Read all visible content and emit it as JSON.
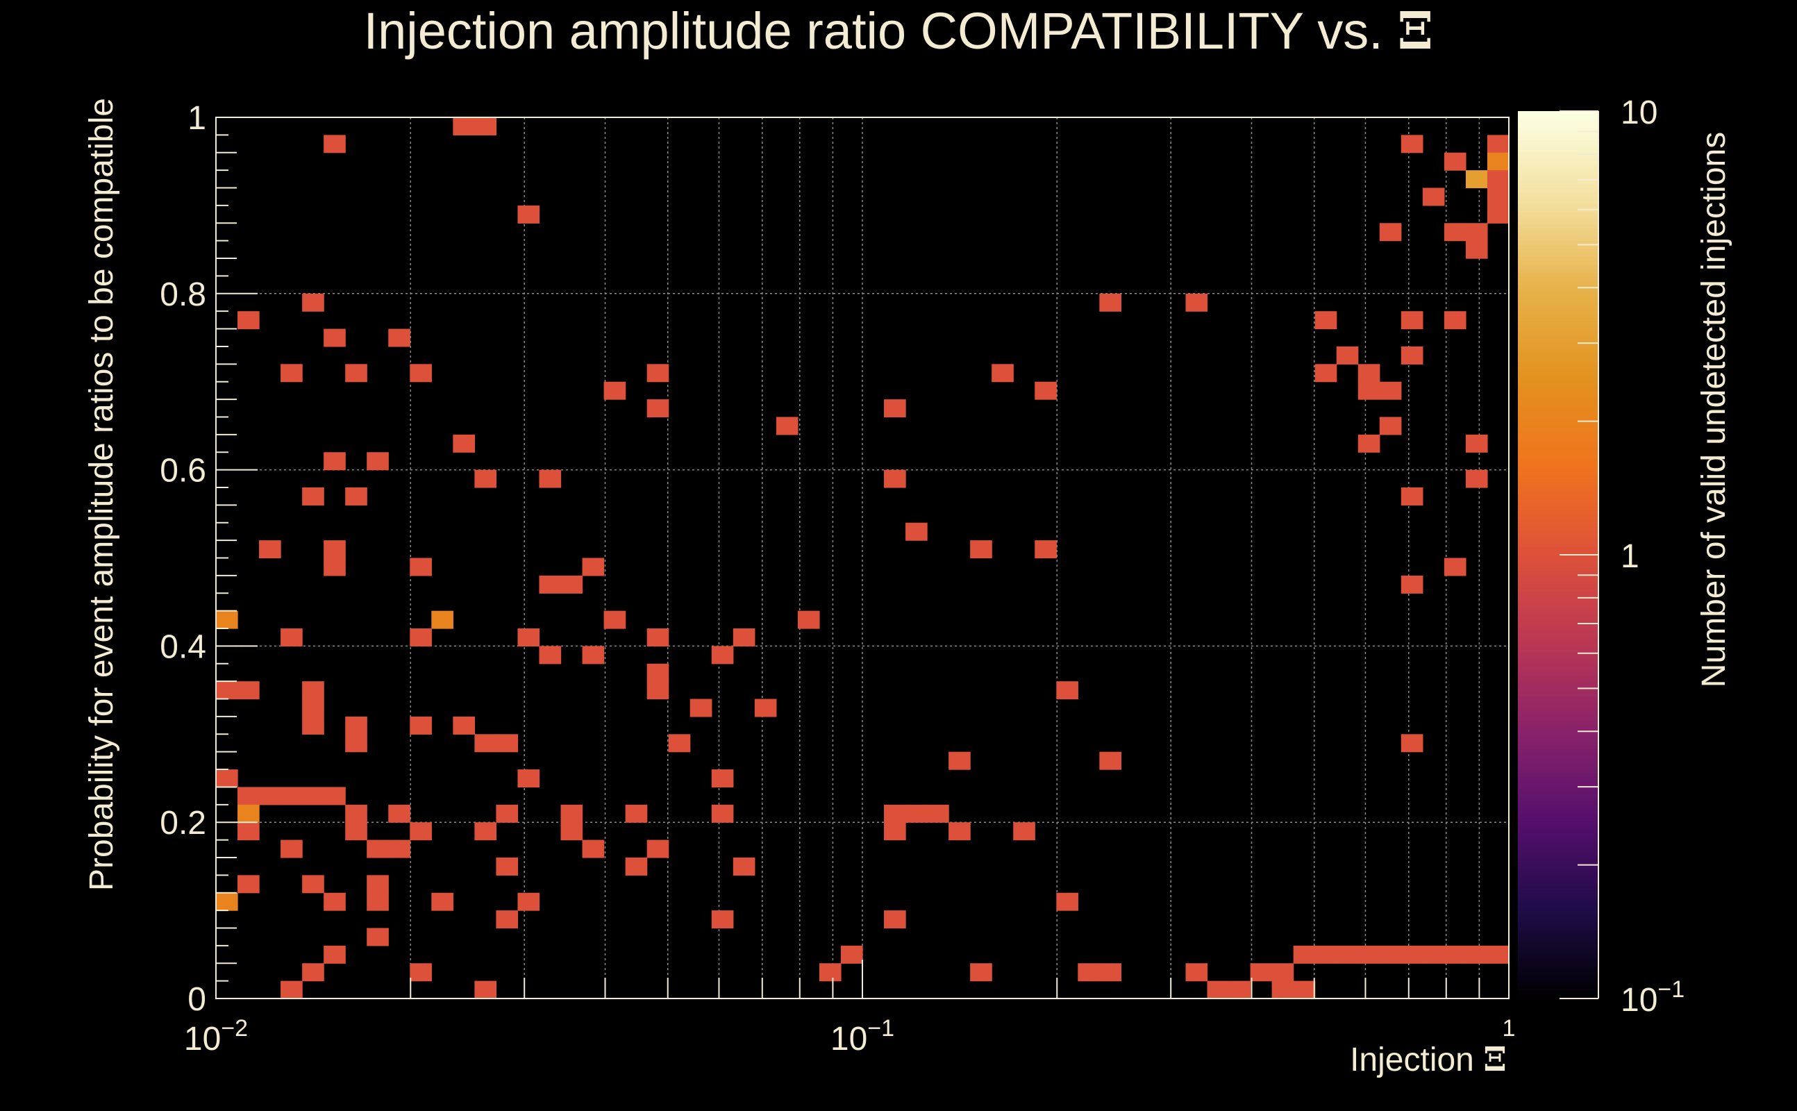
{
  "chart_data": {
    "type": "heatmap",
    "title": "Injection amplitude ratio COMPATIBILITY vs.",
    "title_symbol": "Ξ",
    "xlabel": "Injection",
    "xlabel_symbol": "Ξ",
    "ylabel": "Probability for event amplitude ratios to be compatible",
    "zlabel": "Number of valid undetected injections",
    "xscale": "log",
    "zscale": "log",
    "xlim": [
      0.01,
      1
    ],
    "ylim": [
      0,
      1
    ],
    "zlim": [
      0.1,
      10
    ],
    "x_bins": 60,
    "y_bins": 50,
    "grid": true,
    "x_tick_labels": [
      {
        "value": 0.01,
        "base": "10",
        "exp": "−2"
      },
      {
        "value": 0.1,
        "base": "10",
        "exp": "−1"
      },
      {
        "value": 1,
        "base": "",
        "exp": "1"
      }
    ],
    "y_tick_labels": [
      "0",
      "0.2",
      "0.4",
      "0.6",
      "0.8",
      "1"
    ],
    "z_tick_labels": [
      {
        "value": 0.1,
        "base": "10",
        "exp": "−1"
      },
      {
        "value": 1,
        "base": "1",
        "exp": ""
      },
      {
        "value": 10,
        "base": "10",
        "exp": ""
      }
    ],
    "colormap": [
      "#000000",
      "#1f0c48",
      "#550f6d",
      "#88226a",
      "#ba3655",
      "#dd513a",
      "#f0731d",
      "#e3921f",
      "#e7b24a",
      "#f3e0a0",
      "#fcffe4"
    ],
    "cells": [
      [
        12,
        0,
        1
      ],
      [
        11,
        49,
        1
      ],
      [
        12,
        49,
        1
      ],
      [
        5,
        48,
        1
      ],
      [
        55,
        48,
        1
      ],
      [
        59,
        48,
        1
      ],
      [
        59,
        47,
        2
      ],
      [
        57,
        47,
        1
      ],
      [
        58,
        46,
        3
      ],
      [
        59,
        46,
        1
      ],
      [
        56,
        45,
        1
      ],
      [
        59,
        45,
        1
      ],
      [
        14,
        44,
        1
      ],
      [
        59,
        44,
        1
      ],
      [
        54,
        43,
        1
      ],
      [
        57,
        43,
        1
      ],
      [
        58,
        43,
        1
      ],
      [
        58,
        42,
        1
      ],
      [
        4,
        39,
        1
      ],
      [
        41,
        39,
        1
      ],
      [
        45,
        39,
        1
      ],
      [
        1,
        38,
        1
      ],
      [
        51,
        38,
        1
      ],
      [
        55,
        38,
        1
      ],
      [
        57,
        38,
        1
      ],
      [
        8,
        37,
        1
      ],
      [
        5,
        37,
        1
      ],
      [
        52,
        36,
        1
      ],
      [
        55,
        36,
        1
      ],
      [
        3,
        35,
        1
      ],
      [
        6,
        35,
        1
      ],
      [
        9,
        35,
        1
      ],
      [
        20,
        35,
        1
      ],
      [
        36,
        35,
        1
      ],
      [
        51,
        35,
        1
      ],
      [
        53,
        35,
        1
      ],
      [
        53,
        34,
        1
      ],
      [
        54,
        34,
        1
      ],
      [
        18,
        34,
        1
      ],
      [
        38,
        34,
        1
      ],
      [
        20,
        33,
        1
      ],
      [
        31,
        33,
        1
      ],
      [
        26,
        32,
        1
      ],
      [
        54,
        32,
        1
      ],
      [
        11,
        31,
        1
      ],
      [
        53,
        31,
        1
      ],
      [
        58,
        31,
        1
      ],
      [
        5,
        30,
        1
      ],
      [
        7,
        30,
        1
      ],
      [
        12,
        29,
        1
      ],
      [
        15,
        29,
        1
      ],
      [
        31,
        29,
        1
      ],
      [
        58,
        29,
        1
      ],
      [
        4,
        28,
        1
      ],
      [
        6,
        28,
        1
      ],
      [
        55,
        28,
        1
      ],
      [
        32,
        26,
        1
      ],
      [
        2,
        25,
        1
      ],
      [
        5,
        25,
        1
      ],
      [
        35,
        25,
        1
      ],
      [
        38,
        25,
        1
      ],
      [
        5,
        24,
        1
      ],
      [
        57,
        24,
        1
      ],
      [
        9,
        24,
        1
      ],
      [
        17,
        24,
        1
      ],
      [
        15,
        23,
        1
      ],
      [
        16,
        23,
        1
      ],
      [
        55,
        23,
        1
      ],
      [
        0,
        21,
        2
      ],
      [
        10,
        21,
        2
      ],
      [
        18,
        21,
        1
      ],
      [
        27,
        21,
        1
      ],
      [
        3,
        20,
        1
      ],
      [
        9,
        20,
        1
      ],
      [
        14,
        20,
        1
      ],
      [
        20,
        20,
        1
      ],
      [
        24,
        20,
        1
      ],
      [
        23,
        19,
        1
      ],
      [
        17,
        19,
        1
      ],
      [
        15,
        19,
        1
      ],
      [
        20,
        18,
        1
      ],
      [
        20,
        17,
        1
      ],
      [
        39,
        17,
        1
      ],
      [
        0,
        17,
        1
      ],
      [
        1,
        17,
        1
      ],
      [
        4,
        17,
        1
      ],
      [
        4,
        16,
        1
      ],
      [
        25,
        16,
        1
      ],
      [
        22,
        16,
        1
      ],
      [
        6,
        15,
        1
      ],
      [
        4,
        15,
        1
      ],
      [
        9,
        15,
        1
      ],
      [
        11,
        15,
        1
      ],
      [
        6,
        14,
        1
      ],
      [
        12,
        14,
        1
      ],
      [
        13,
        14,
        1
      ],
      [
        21,
        14,
        1
      ],
      [
        55,
        14,
        1
      ],
      [
        34,
        13,
        1
      ],
      [
        41,
        13,
        1
      ],
      [
        14,
        12,
        1
      ],
      [
        23,
        12,
        1
      ],
      [
        0,
        12,
        1
      ],
      [
        4,
        11,
        1
      ],
      [
        5,
        11,
        1
      ],
      [
        2,
        11,
        1
      ],
      [
        3,
        11,
        1
      ],
      [
        1,
        11,
        1
      ],
      [
        6,
        10,
        1
      ],
      [
        8,
        10,
        1
      ],
      [
        1,
        10,
        2
      ],
      [
        16,
        10,
        1
      ],
      [
        13,
        10,
        1
      ],
      [
        19,
        10,
        1
      ],
      [
        23,
        10,
        1
      ],
      [
        33,
        10,
        1
      ],
      [
        1,
        9,
        1
      ],
      [
        6,
        9,
        1
      ],
      [
        16,
        9,
        1
      ],
      [
        12,
        9,
        1
      ],
      [
        9,
        9,
        1
      ],
      [
        17,
        8,
        1
      ],
      [
        20,
        8,
        1
      ],
      [
        31,
        9,
        1
      ],
      [
        31,
        10,
        1
      ],
      [
        32,
        10,
        1
      ],
      [
        34,
        9,
        1
      ],
      [
        37,
        9,
        1
      ],
      [
        3,
        8,
        1
      ],
      [
        7,
        8,
        1
      ],
      [
        8,
        8,
        1
      ],
      [
        13,
        7,
        1
      ],
      [
        19,
        7,
        1
      ],
      [
        24,
        7,
        1
      ],
      [
        39,
        5,
        1
      ],
      [
        5,
        5,
        1
      ],
      [
        1,
        6,
        1
      ],
      [
        4,
        6,
        1
      ],
      [
        0,
        5,
        2
      ],
      [
        7,
        6,
        1
      ],
      [
        7,
        5,
        1
      ],
      [
        14,
        5,
        1
      ],
      [
        10,
        5,
        1
      ],
      [
        13,
        4,
        1
      ],
      [
        31,
        4,
        1
      ],
      [
        7,
        3,
        1
      ],
      [
        23,
        4,
        1
      ],
      [
        5,
        2,
        1
      ],
      [
        29,
        2,
        1
      ],
      [
        4,
        1,
        1
      ],
      [
        9,
        1,
        1
      ],
      [
        28,
        1,
        1
      ],
      [
        35,
        1,
        1
      ],
      [
        40,
        1,
        1
      ],
      [
        41,
        1,
        1
      ],
      [
        48,
        1,
        1
      ],
      [
        49,
        1,
        1
      ],
      [
        3,
        0,
        1
      ],
      [
        46,
        0,
        1
      ],
      [
        47,
        0,
        1
      ],
      [
        49,
        0,
        1
      ],
      [
        50,
        0,
        1
      ],
      [
        50,
        2,
        1
      ],
      [
        51,
        2,
        1
      ],
      [
        52,
        2,
        1
      ],
      [
        53,
        2,
        1
      ],
      [
        54,
        2,
        1
      ],
      [
        55,
        2,
        1
      ],
      [
        56,
        2,
        1
      ],
      [
        57,
        2,
        1
      ],
      [
        58,
        2,
        1
      ],
      [
        59,
        2,
        1
      ],
      [
        45,
        1,
        1
      ]
    ]
  }
}
